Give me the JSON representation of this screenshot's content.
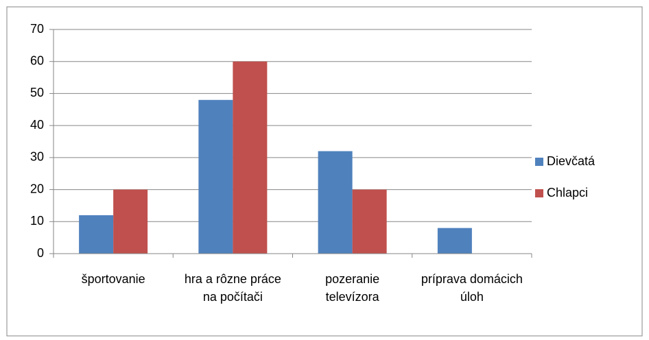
{
  "chart_data": {
    "type": "bar",
    "categories": [
      "športovanie",
      "hra a rôzne práce na počítači",
      "pozeranie televízora",
      "príprava domácich úloh"
    ],
    "series": [
      {
        "name": "Dievčatá",
        "color": "#4f81bd",
        "values": [
          12,
          48,
          32,
          8
        ]
      },
      {
        "name": "Chlapci",
        "color": "#c0504d",
        "values": [
          20,
          60,
          20,
          0
        ]
      }
    ],
    "ylim": [
      0,
      70
    ],
    "yticks": [
      0,
      10,
      20,
      30,
      40,
      50,
      60,
      70
    ],
    "grid": true,
    "legend": "right"
  }
}
